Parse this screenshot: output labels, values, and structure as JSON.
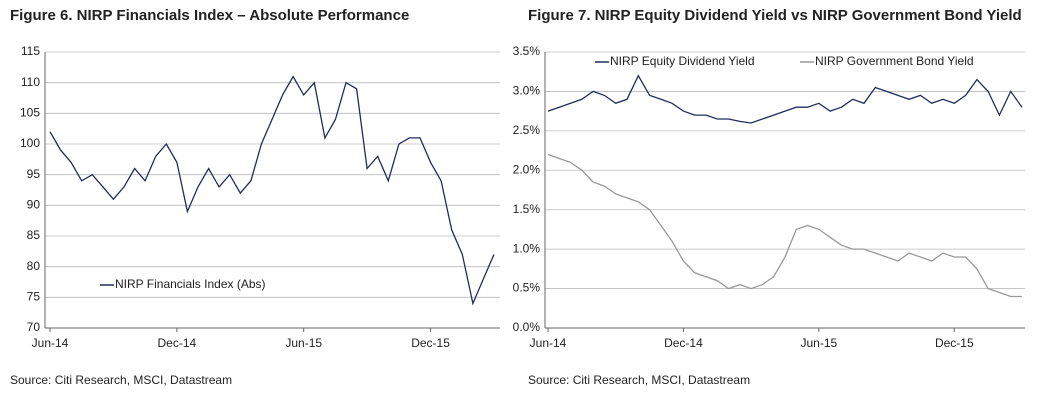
{
  "chart_data": [
    {
      "type": "line",
      "title": "Figure 6. NIRP Financials Index – Absolute Performance",
      "source": "Source: Citi Research, MSCI, Datastream",
      "categories": [
        "Jun-14",
        null,
        null,
        null,
        null,
        null,
        null,
        null,
        null,
        null,
        null,
        null,
        "Dec-14",
        null,
        null,
        null,
        null,
        null,
        null,
        null,
        null,
        null,
        null,
        null,
        "Jun-15",
        null,
        null,
        null,
        null,
        null,
        null,
        null,
        null,
        null,
        null,
        null,
        "Dec-15",
        null,
        null,
        null,
        null,
        null,
        null
      ],
      "series": [
        {
          "name": "NIRP Financials Index (Abs)",
          "color": "#1f2d5c",
          "values": [
            102,
            99,
            97,
            94,
            95,
            93,
            91,
            93,
            96,
            94,
            98,
            100,
            97,
            89,
            93,
            96,
            93,
            95,
            92,
            94,
            100,
            104,
            108,
            111,
            108,
            110,
            101,
            104,
            110,
            109,
            96,
            98,
            94,
            100,
            101,
            101,
            97,
            94,
            86,
            82,
            74,
            78,
            82
          ]
        }
      ],
      "ylim": [
        70,
        115
      ],
      "yticks": [
        70,
        75,
        80,
        85,
        90,
        95,
        100,
        105,
        110,
        115
      ],
      "grid": true,
      "legend": "lower-left"
    },
    {
      "type": "line",
      "title": "Figure 7. NIRP Equity Dividend Yield vs NIRP Government Bond Yield",
      "source": "Source: Citi Research, MSCI, Datastream",
      "categories": [
        "Jun-14",
        null,
        null,
        null,
        null,
        null,
        null,
        null,
        null,
        null,
        null,
        null,
        "Dec-14",
        null,
        null,
        null,
        null,
        null,
        null,
        null,
        null,
        null,
        null,
        null,
        "Jun-15",
        null,
        null,
        null,
        null,
        null,
        null,
        null,
        null,
        null,
        null,
        null,
        "Dec-15",
        null,
        null,
        null,
        null,
        null,
        null
      ],
      "series": [
        {
          "name": "NIRP Equity Dividend Yield",
          "color": "#1f2d5c",
          "values": [
            2.75,
            2.8,
            2.85,
            2.9,
            3.0,
            2.95,
            2.85,
            2.9,
            3.2,
            2.95,
            2.9,
            2.85,
            2.75,
            2.7,
            2.7,
            2.65,
            2.65,
            2.62,
            2.6,
            2.65,
            2.7,
            2.75,
            2.8,
            2.8,
            2.85,
            2.75,
            2.8,
            2.9,
            2.85,
            3.05,
            3.0,
            2.95,
            2.9,
            2.95,
            2.85,
            2.9,
            2.85,
            2.95,
            3.15,
            3.0,
            2.7,
            3.0,
            2.8
          ]
        },
        {
          "name": "NIRP Government Bond Yield",
          "color": "#999999",
          "values": [
            2.2,
            2.15,
            2.1,
            2.0,
            1.85,
            1.8,
            1.7,
            1.65,
            1.6,
            1.5,
            1.3,
            1.1,
            0.85,
            0.7,
            0.65,
            0.6,
            0.5,
            0.55,
            0.5,
            0.55,
            0.65,
            0.9,
            1.25,
            1.3,
            1.25,
            1.15,
            1.05,
            1.0,
            1.0,
            0.95,
            0.9,
            0.85,
            0.95,
            0.9,
            0.85,
            0.95,
            0.9,
            0.9,
            0.75,
            0.5,
            0.45,
            0.4,
            0.4
          ]
        }
      ],
      "ylim": [
        0,
        3.5
      ],
      "yticks": [
        {
          "value": 0,
          "label": "0.0%"
        },
        {
          "value": 0.5,
          "label": "0.5%"
        },
        {
          "value": 1,
          "label": "1.0%"
        },
        {
          "value": 1.5,
          "label": "1.5%"
        },
        {
          "value": 2,
          "label": "2.0%"
        },
        {
          "value": 2.5,
          "label": "2.5%"
        },
        {
          "value": 3,
          "label": "3.0%"
        },
        {
          "value": 3.5,
          "label": "3.5%"
        }
      ],
      "grid": true,
      "legend": "upper"
    }
  ]
}
